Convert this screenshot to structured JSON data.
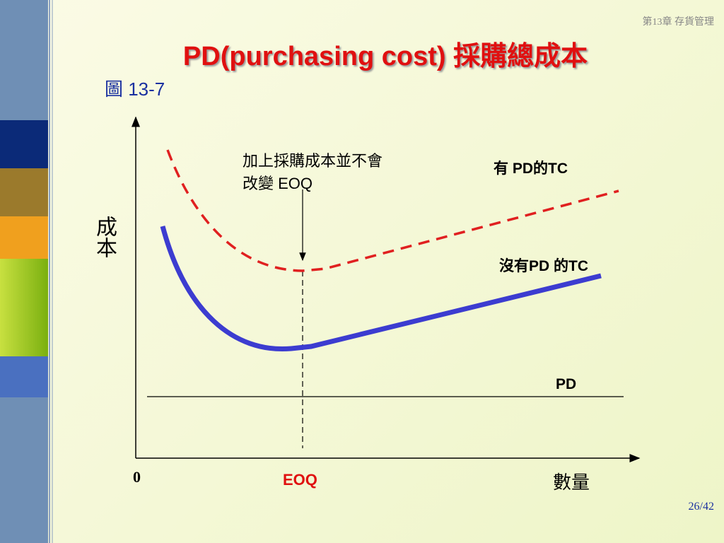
{
  "header": {
    "chapter": "第13章 存貨管理",
    "title": "PD(purchasing cost) 採購總成本",
    "figure": "圖 13-7"
  },
  "diagram": {
    "y_axis_label": "成本",
    "x_axis_label": "數量",
    "origin": "0",
    "eoq_label": "EOQ",
    "annotation": [
      "加上採購成本並不會",
      "改變 EOQ"
    ],
    "curve_with_pd": "有 PD的TC",
    "curve_without_pd": "沒有PD 的TC",
    "pd_line": "PD"
  },
  "footer": {
    "page": "26/42"
  }
}
